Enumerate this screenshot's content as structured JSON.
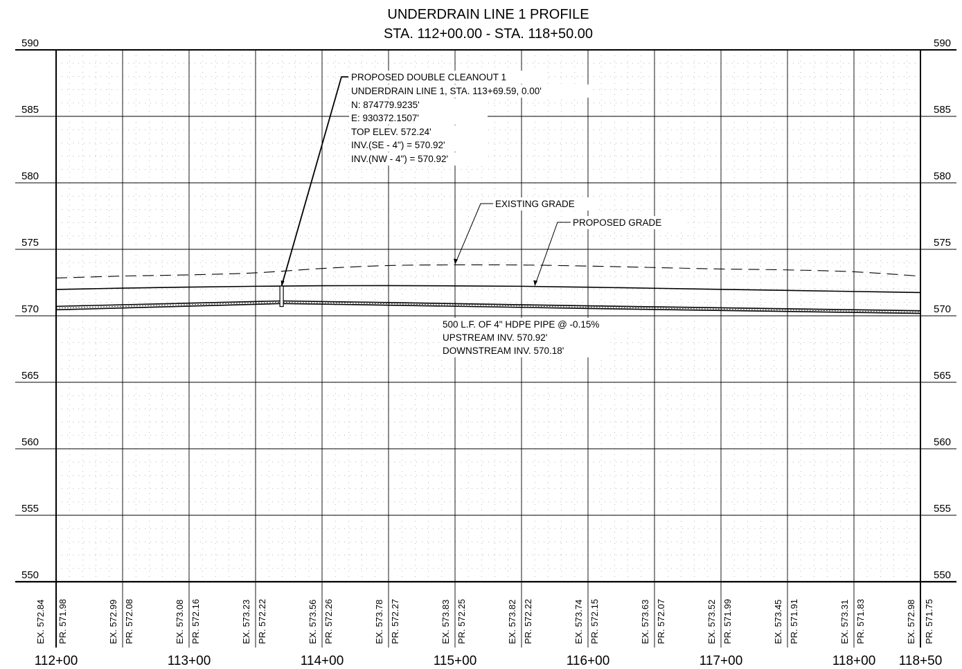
{
  "title": {
    "line1": "UNDERDRAIN LINE 1 PROFILE",
    "line2": "STA. 112+00.00 - STA. 118+50.00"
  },
  "chart_data": {
    "type": "line",
    "x_unit": "station (ft)",
    "y_unit": "elevation (ft)",
    "xlim": [
      11200,
      11850
    ],
    "ylim": [
      550,
      590
    ],
    "grid": true,
    "elevation_ticks": [
      "590",
      "585",
      "580",
      "575",
      "570",
      "565",
      "560",
      "555",
      "550"
    ],
    "station_labels": [
      "112+00",
      "113+00",
      "114+00",
      "115+00",
      "116+00",
      "117+00",
      "118+00",
      "118+50"
    ],
    "series": [
      {
        "name": "EXISTING GRADE",
        "style": "dashed",
        "points": [
          [
            11200,
            572.84
          ],
          [
            11250,
            572.99
          ],
          [
            11300,
            573.08
          ],
          [
            11350,
            573.23
          ],
          [
            11400,
            573.56
          ],
          [
            11450,
            573.78
          ],
          [
            11500,
            573.83
          ],
          [
            11550,
            573.82
          ],
          [
            11600,
            573.74
          ],
          [
            11650,
            573.63
          ],
          [
            11700,
            573.52
          ],
          [
            11750,
            573.45
          ],
          [
            11800,
            573.31
          ],
          [
            11850,
            572.98
          ]
        ]
      },
      {
        "name": "PROPOSED GRADE",
        "style": "solid",
        "points": [
          [
            11200,
            571.98
          ],
          [
            11250,
            572.08
          ],
          [
            11300,
            572.16
          ],
          [
            11350,
            572.22
          ],
          [
            11400,
            572.26
          ],
          [
            11450,
            572.27
          ],
          [
            11500,
            572.25
          ],
          [
            11550,
            572.22
          ],
          [
            11600,
            572.15
          ],
          [
            11650,
            572.07
          ],
          [
            11700,
            571.99
          ],
          [
            11750,
            571.91
          ],
          [
            11800,
            571.83
          ],
          [
            11850,
            571.75
          ]
        ]
      },
      {
        "name": "4\" HDPE PIPE",
        "style": "pipe",
        "points": [
          [
            11200,
            570.71
          ],
          [
            11369.59,
            571.12
          ],
          [
            11450,
            571.0
          ],
          [
            11600,
            570.75
          ],
          [
            11850,
            570.38
          ]
        ],
        "bottom_points": [
          [
            11200,
            570.45
          ],
          [
            11369.59,
            570.92
          ],
          [
            11450,
            570.8
          ],
          [
            11600,
            570.55
          ],
          [
            11850,
            570.18
          ]
        ]
      }
    ],
    "structure": {
      "name": "PROPOSED DOUBLE CLEANOUT 1",
      "station": 11369.59,
      "top_elev": 572.24,
      "invert": 570.92
    },
    "table": [
      {
        "x": 11200,
        "ex": "EX. 572.84",
        "pr": "PR. 571.98"
      },
      {
        "x": 11250,
        "ex": "EX. 572.99",
        "pr": "PR. 572.08"
      },
      {
        "x": 11300,
        "ex": "EX. 573.08",
        "pr": "PR. 572.16"
      },
      {
        "x": 11350,
        "ex": "EX. 573.23",
        "pr": "PR. 572.22"
      },
      {
        "x": 11400,
        "ex": "EX. 573.56",
        "pr": "PR. 572.26"
      },
      {
        "x": 11450,
        "ex": "EX. 573.78",
        "pr": "PR. 572.27"
      },
      {
        "x": 11500,
        "ex": "EX. 573.83",
        "pr": "PR. 572.25"
      },
      {
        "x": 11550,
        "ex": "EX. 573.82",
        "pr": "PR. 572.22"
      },
      {
        "x": 11600,
        "ex": "EX. 573.74",
        "pr": "PR. 572.15"
      },
      {
        "x": 11650,
        "ex": "EX. 573.63",
        "pr": "PR. 572.07"
      },
      {
        "x": 11700,
        "ex": "EX. 573.52",
        "pr": "PR. 571.99"
      },
      {
        "x": 11750,
        "ex": "EX. 573.45",
        "pr": "PR. 571.91"
      },
      {
        "x": 11800,
        "ex": "EX. 573.31",
        "pr": "PR. 571.83"
      },
      {
        "x": 11850,
        "ex": "EX. 572.98",
        "pr": "PR. 571.75"
      }
    ]
  },
  "annotations": {
    "cleanout": [
      "PROPOSED DOUBLE CLEANOUT 1",
      "UNDERDRAIN LINE 1, STA. 113+69.59, 0.00'",
      "N: 874779.9235'",
      "E: 930372.1507'",
      "TOP ELEV. 572.24'",
      "INV.(SE - 4\") = 570.92'",
      "INV.(NW - 4\") = 570.92'"
    ],
    "existing_grade": "EXISTING GRADE",
    "proposed_grade": "PROPOSED GRADE",
    "pipe": [
      "500 L.F. OF 4\" HDPE PIPE @ -0.15%",
      "UPSTREAM INV. 570.92'",
      "DOWNSTREAM INV. 570.18'"
    ]
  }
}
